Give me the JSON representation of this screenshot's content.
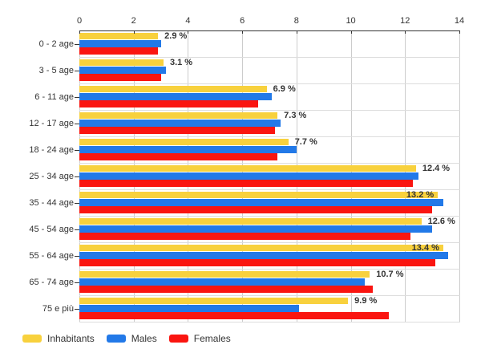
{
  "chart_data": {
    "type": "bar",
    "orientation": "horizontal",
    "title": "",
    "categories": [
      "0 - 2 age",
      "3 - 5 age",
      "6 - 11 age",
      "12 - 17 age",
      "18 - 24 age",
      "25 - 34 age",
      "35 - 44 age",
      "45 - 54 age",
      "55 - 64 age",
      "65 - 74 age",
      "75 e più"
    ],
    "series": [
      {
        "name": "Inhabitants",
        "color": "#F8D13D",
        "values": [
          2.9,
          3.1,
          6.9,
          7.3,
          7.7,
          12.4,
          13.2,
          12.6,
          13.4,
          10.7,
          9.9
        ]
      },
      {
        "name": "Males",
        "color": "#2279E8",
        "values": [
          3.0,
          3.2,
          7.1,
          7.4,
          8.0,
          12.5,
          13.4,
          13.0,
          13.6,
          10.5,
          8.1
        ]
      },
      {
        "name": "Females",
        "color": "#FA1510",
        "values": [
          2.9,
          3.0,
          6.6,
          7.2,
          7.3,
          12.3,
          13.0,
          12.2,
          13.1,
          10.8,
          11.4
        ]
      }
    ],
    "data_labels": [
      "2.9 %",
      "3.1 %",
      "6.9 %",
      "7.3 %",
      "7.7 %",
      "12.4 %",
      "13.2 %",
      "12.6 %",
      "13.4 %",
      "10.7 %",
      "9.9 %"
    ],
    "data_label_series": "Inhabitants",
    "xlim": [
      0,
      14
    ],
    "x_ticks": [
      0,
      2,
      4,
      6,
      8,
      10,
      12,
      14
    ],
    "x_tick_labels": [
      "0",
      "2",
      "4",
      "6",
      "8",
      "10",
      "12",
      "14"
    ],
    "grid": true,
    "legend_position": "bottom-left",
    "legend": [
      "Inhabitants",
      "Males",
      "Females"
    ]
  },
  "colors": {
    "background": "#FFFFFF",
    "grid_vertical": "#CCCCCC",
    "grid_horizontal": "#DDDDDD",
    "axis": "#333333",
    "text": "#333333",
    "data_label_text": "#333333"
  }
}
